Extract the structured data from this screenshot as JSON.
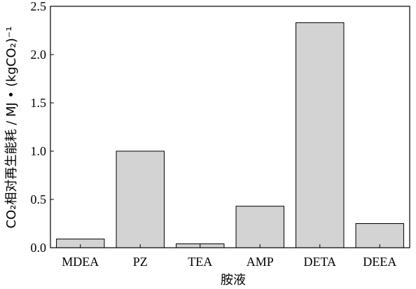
{
  "chart_data": {
    "type": "bar",
    "categories": [
      "MDEA",
      "PZ",
      "TEA",
      "AMP",
      "DETA",
      "DEEA"
    ],
    "values": [
      0.09,
      1.0,
      0.04,
      0.43,
      2.33,
      0.25
    ],
    "xlabel": "胺液",
    "ylabel": "CO₂相对再生能耗 / MJ • (kgCO₂)⁻¹",
    "ylim": [
      0,
      2.5
    ],
    "yticks": [
      "0.0",
      "0.5",
      "1.0",
      "1.5",
      "2.0",
      "2.5"
    ],
    "grid": false,
    "colors": {
      "bar_fill": "#d3d3d3",
      "bar_stroke": "#000000"
    }
  }
}
